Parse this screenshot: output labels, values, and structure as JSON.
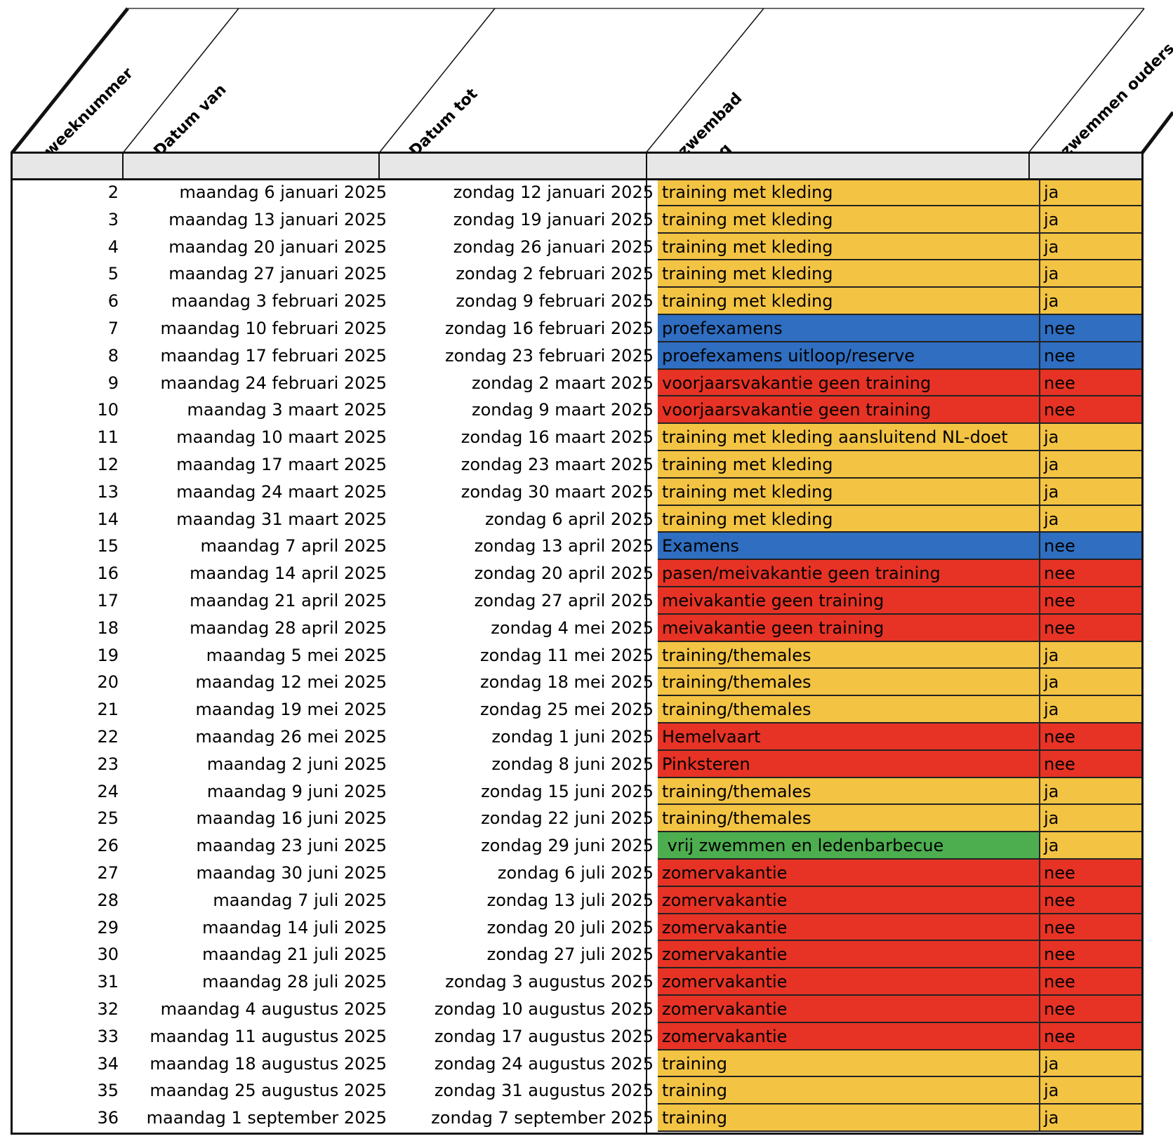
{
  "colors": {
    "yellow": "#f3c343",
    "blue": "#2f6ec0",
    "red": "#e63325",
    "green": "#4dae4f",
    "header_band": "#e7e7e7"
  },
  "headers": {
    "weeknummer": "weeknummer",
    "datum_van": "Datum van",
    "datum_tot": "Datum tot",
    "zwembad_line1": "zwembad",
    "zwembad_line2": "zaterdag",
    "zwemmen_ouders": "zwemmen ouders"
  },
  "rows": [
    {
      "week": "2",
      "van": "maandag 6 januari 2025",
      "tot": "zondag 12 januari 2025",
      "activity": "training met kleding",
      "ouders": "ja",
      "color": "yellow"
    },
    {
      "week": "3",
      "van": "maandag 13 januari 2025",
      "tot": "zondag 19 januari 2025",
      "activity": "training met kleding",
      "ouders": "ja",
      "color": "yellow"
    },
    {
      "week": "4",
      "van": "maandag 20 januari 2025",
      "tot": "zondag 26 januari 2025",
      "activity": "training met kleding",
      "ouders": "ja",
      "color": "yellow"
    },
    {
      "week": "5",
      "van": "maandag 27 januari 2025",
      "tot": "zondag 2 februari 2025",
      "activity": "training met kleding",
      "ouders": "ja",
      "color": "yellow"
    },
    {
      "week": "6",
      "van": "maandag 3 februari 2025",
      "tot": "zondag 9 februari 2025",
      "activity": "training met kleding",
      "ouders": "ja",
      "color": "yellow"
    },
    {
      "week": "7",
      "van": "maandag 10 februari 2025",
      "tot": "zondag 16 februari 2025",
      "activity": "proefexamens",
      "ouders": "nee",
      "color": "blue"
    },
    {
      "week": "8",
      "van": "maandag 17 februari 2025",
      "tot": "zondag 23 februari 2025",
      "activity": "proefexamens uitloop/reserve",
      "ouders": "nee",
      "color": "blue"
    },
    {
      "week": "9",
      "van": "maandag 24 februari 2025",
      "tot": "zondag 2 maart 2025",
      "activity": "voorjaarsvakantie geen training",
      "ouders": "nee",
      "color": "red"
    },
    {
      "week": "10",
      "van": "maandag 3 maart 2025",
      "tot": "zondag 9 maart 2025",
      "activity": "voorjaarsvakantie geen training",
      "ouders": "nee",
      "color": "red"
    },
    {
      "week": "11",
      "van": "maandag 10 maart 2025",
      "tot": "zondag 16 maart 2025",
      "activity": "training met kleding aansluitend NL-doet",
      "ouders": "ja",
      "color": "yellow"
    },
    {
      "week": "12",
      "van": "maandag 17 maart 2025",
      "tot": "zondag 23 maart 2025",
      "activity": "training met kleding",
      "ouders": "ja",
      "color": "yellow"
    },
    {
      "week": "13",
      "van": "maandag 24 maart 2025",
      "tot": "zondag 30 maart 2025",
      "activity": "training met kleding",
      "ouders": "ja",
      "color": "yellow"
    },
    {
      "week": "14",
      "van": "maandag 31 maart 2025",
      "tot": "zondag 6 april 2025",
      "activity": "training met kleding",
      "ouders": "ja",
      "color": "yellow"
    },
    {
      "week": "15",
      "van": "maandag 7 april 2025",
      "tot": "zondag 13 april 2025",
      "activity": "Examens",
      "ouders": "nee",
      "color": "blue"
    },
    {
      "week": "16",
      "van": "maandag 14 april 2025",
      "tot": "zondag 20 april 2025",
      "activity": "pasen/meivakantie geen training",
      "ouders": "nee",
      "color": "red"
    },
    {
      "week": "17",
      "van": "maandag 21 april 2025",
      "tot": "zondag 27 april 2025",
      "activity": "meivakantie geen training",
      "ouders": "nee",
      "color": "red"
    },
    {
      "week": "18",
      "van": "maandag 28 april 2025",
      "tot": "zondag 4 mei 2025",
      "activity": "meivakantie geen training",
      "ouders": "nee",
      "color": "red"
    },
    {
      "week": "19",
      "van": "maandag 5 mei 2025",
      "tot": "zondag 11 mei 2025",
      "activity": "training/themales",
      "ouders": "ja",
      "color": "yellow"
    },
    {
      "week": "20",
      "van": "maandag 12 mei 2025",
      "tot": "zondag 18 mei 2025",
      "activity": "training/themales",
      "ouders": "ja",
      "color": "yellow"
    },
    {
      "week": "21",
      "van": "maandag 19 mei 2025",
      "tot": "zondag 25 mei 2025",
      "activity": "training/themales",
      "ouders": "ja",
      "color": "yellow"
    },
    {
      "week": "22",
      "van": "maandag 26 mei 2025",
      "tot": "zondag 1 juni 2025",
      "activity": "Hemelvaart",
      "ouders": "nee",
      "color": "red"
    },
    {
      "week": "23",
      "van": "maandag 2 juni 2025",
      "tot": "zondag 8 juni 2025",
      "activity": "Pinksteren",
      "ouders": "nee",
      "color": "red"
    },
    {
      "week": "24",
      "van": "maandag 9 juni 2025",
      "tot": "zondag 15 juni 2025",
      "activity": "training/themales",
      "ouders": "ja",
      "color": "yellow"
    },
    {
      "week": "25",
      "van": "maandag 16 juni 2025",
      "tot": "zondag 22 juni 2025",
      "activity": "training/themales",
      "ouders": "ja",
      "color": "yellow"
    },
    {
      "week": "26",
      "van": "maandag 23 juni 2025",
      "tot": "zondag 29 juni 2025",
      "activity": " vrij zwemmen en ledenbarbecue",
      "ouders": "ja",
      "color": "green",
      "ouders_color": "yellow"
    },
    {
      "week": "27",
      "van": "maandag 30 juni 2025",
      "tot": "zondag 6 juli 2025",
      "activity": "zomervakantie",
      "ouders": "nee",
      "color": "red"
    },
    {
      "week": "28",
      "van": "maandag 7 juli 2025",
      "tot": "zondag 13 juli 2025",
      "activity": "zomervakantie",
      "ouders": "nee",
      "color": "red"
    },
    {
      "week": "29",
      "van": "maandag 14 juli 2025",
      "tot": "zondag 20 juli 2025",
      "activity": "zomervakantie",
      "ouders": "nee",
      "color": "red"
    },
    {
      "week": "30",
      "van": "maandag 21 juli 2025",
      "tot": "zondag 27 juli 2025",
      "activity": "zomervakantie",
      "ouders": "nee",
      "color": "red"
    },
    {
      "week": "31",
      "van": "maandag 28 juli 2025",
      "tot": "zondag 3 augustus 2025",
      "activity": "zomervakantie",
      "ouders": "nee",
      "color": "red"
    },
    {
      "week": "32",
      "van": "maandag 4 augustus 2025",
      "tot": "zondag 10 augustus 2025",
      "activity": "zomervakantie",
      "ouders": "nee",
      "color": "red"
    },
    {
      "week": "33",
      "van": "maandag 11 augustus 2025",
      "tot": "zondag 17 augustus 2025",
      "activity": "zomervakantie",
      "ouders": "nee",
      "color": "red"
    },
    {
      "week": "34",
      "van": "maandag 18 augustus 2025",
      "tot": "zondag 24 augustus 2025",
      "activity": "training",
      "ouders": "ja",
      "color": "yellow"
    },
    {
      "week": "35",
      "van": "maandag 25 augustus 2025",
      "tot": "zondag 31 augustus 2025",
      "activity": "training",
      "ouders": "ja",
      "color": "yellow"
    },
    {
      "week": "36",
      "van": "maandag 1 september 2025",
      "tot": "zondag 7 september 2025",
      "activity": "training",
      "ouders": "ja",
      "color": "yellow"
    }
  ]
}
